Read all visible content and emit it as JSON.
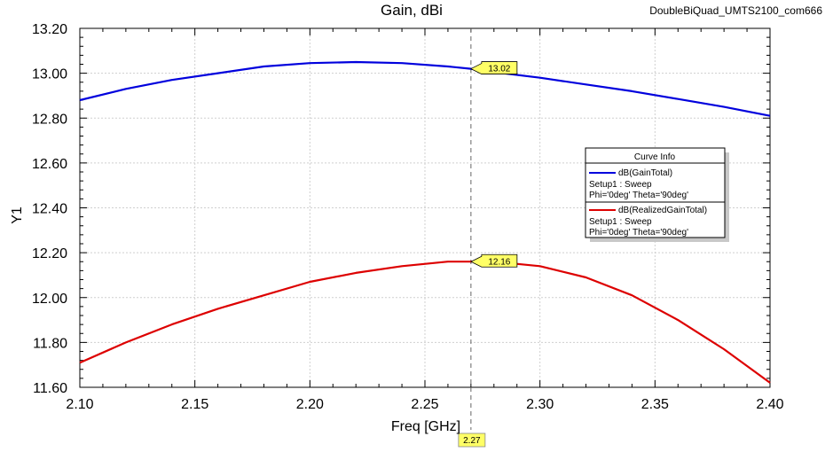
{
  "header": {
    "title": "Gain, dBi",
    "project": "DoubleBiQuad_UMTS2100_com666"
  },
  "chart_data": {
    "type": "line",
    "title": "Gain, dBi",
    "xlabel": "Freq [GHz]",
    "ylabel": "Y1",
    "xlim": [
      2.1,
      2.4
    ],
    "ylim": [
      11.6,
      13.2
    ],
    "x_ticks": [
      "2.10",
      "2.15",
      "2.20",
      "2.25",
      "2.30",
      "2.35",
      "2.40"
    ],
    "y_ticks": [
      "11.60",
      "11.80",
      "12.00",
      "12.20",
      "12.40",
      "12.60",
      "12.80",
      "13.00",
      "13.20"
    ],
    "grid": true,
    "legend_position": "right",
    "legend_title": "Curve Info",
    "marker_x": 2.27,
    "marker_x_label": "2.27",
    "series": [
      {
        "name": "dB(GainTotal)",
        "setup": "Setup1 : Sweep",
        "params": "Phi='0deg' Theta='90deg'",
        "color": "#0000dd",
        "x": [
          2.1,
          2.12,
          2.14,
          2.16,
          2.18,
          2.2,
          2.22,
          2.24,
          2.26,
          2.27,
          2.28,
          2.3,
          2.32,
          2.34,
          2.36,
          2.38,
          2.4
        ],
        "y": [
          12.88,
          12.93,
          12.97,
          13.0,
          13.03,
          13.045,
          13.05,
          13.045,
          13.03,
          13.02,
          13.005,
          12.98,
          12.95,
          12.92,
          12.885,
          12.85,
          12.81
        ],
        "marker_value": 13.02,
        "marker_label": "13.02"
      },
      {
        "name": "dB(RealizedGainTotal)",
        "setup": "Setup1 : Sweep",
        "params": "Phi='0deg' Theta='90deg'",
        "color": "#dd0000",
        "x": [
          2.1,
          2.12,
          2.14,
          2.16,
          2.18,
          2.2,
          2.22,
          2.24,
          2.26,
          2.27,
          2.28,
          2.3,
          2.32,
          2.34,
          2.36,
          2.38,
          2.4
        ],
        "y": [
          11.71,
          11.8,
          11.88,
          11.95,
          12.01,
          12.07,
          12.11,
          12.14,
          12.16,
          12.16,
          12.16,
          12.14,
          12.09,
          12.01,
          11.9,
          11.77,
          11.62
        ],
        "marker_value": 12.16,
        "marker_label": "12.16"
      }
    ]
  }
}
